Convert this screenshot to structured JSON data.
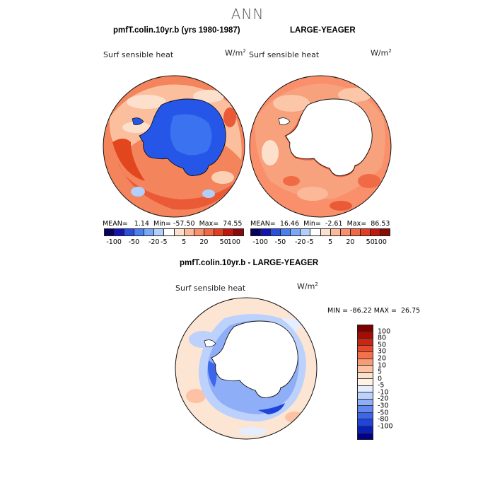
{
  "main_title": "ANN",
  "panels": [
    {
      "id": "model",
      "title": "pmfT.colin.10yr.b (yrs 1980-1987)",
      "field_label": "Surf sensible heat",
      "units_base": "W/m",
      "units_exp": "2",
      "mean": "1.14",
      "min": "-57.50",
      "max": "74.55"
    },
    {
      "id": "obs",
      "title": "LARGE-YEAGER",
      "field_label": "Surf sensible heat",
      "units_base": "W/m",
      "units_exp": "2",
      "mean": "16.46",
      "min": "-2.61",
      "max": "86.53"
    },
    {
      "id": "diff",
      "title": "pmfT.colin.10yr.b - LARGE-YEAGER",
      "field_label": "Surf sensible heat",
      "units_base": "W/m",
      "units_exp": "2",
      "min": "-86.22",
      "max": "26.75"
    }
  ],
  "labels": {
    "mean": "MEAN=",
    "min": "Min=",
    "max": "Max=",
    "min_upper": "MIN =",
    "max_upper": "MAX ="
  },
  "colorbar_main": {
    "colors": [
      "#08005e",
      "#1414b4",
      "#2a4fe0",
      "#4a7ff2",
      "#7aa8f8",
      "#b2cffc",
      "#ffffff",
      "#fde0cc",
      "#fcb99a",
      "#f9906b",
      "#f06845",
      "#e23e22",
      "#c0180c",
      "#8a0a06"
    ],
    "tick_labels": [
      "-100",
      "-50",
      "-20",
      "-5",
      "5",
      "20",
      "50",
      "100"
    ]
  },
  "colorbar_diff": {
    "colors": [
      "#00008c",
      "#0a1fb4",
      "#1e44dc",
      "#3d66ea",
      "#6189f2",
      "#8eaef7",
      "#bcd1fb",
      "#e4eefe",
      "#fff3e8",
      "#fde0cc",
      "#fcc2a3",
      "#f99b73",
      "#f4704b",
      "#e7482a",
      "#cc2411",
      "#a60c04",
      "#7d0000"
    ],
    "tick_labels": [
      "100",
      "80",
      "50",
      "30",
      "20",
      "10",
      "5",
      "0",
      "-5",
      "-10",
      "-20",
      "-30",
      "-50",
      "-80",
      "-100"
    ]
  },
  "map_colors": {
    "ocean_warm_light": "#fbd0b5",
    "ocean_warm_mid": "#f69a72",
    "ocean_warm_strong": "#ea5a36",
    "ocean_neutral": "#fdeee2",
    "ocean_cool": "#aecbf8",
    "continent_model": "#2556e8",
    "continent_model_inner": "#3a72f0",
    "continent_obs": "#ffffff",
    "coast": "#111111",
    "diff_base": "#fde5d4",
    "diff_cool_ring": "#a8c4f6",
    "diff_cool_strong": "#4f7fee"
  }
}
